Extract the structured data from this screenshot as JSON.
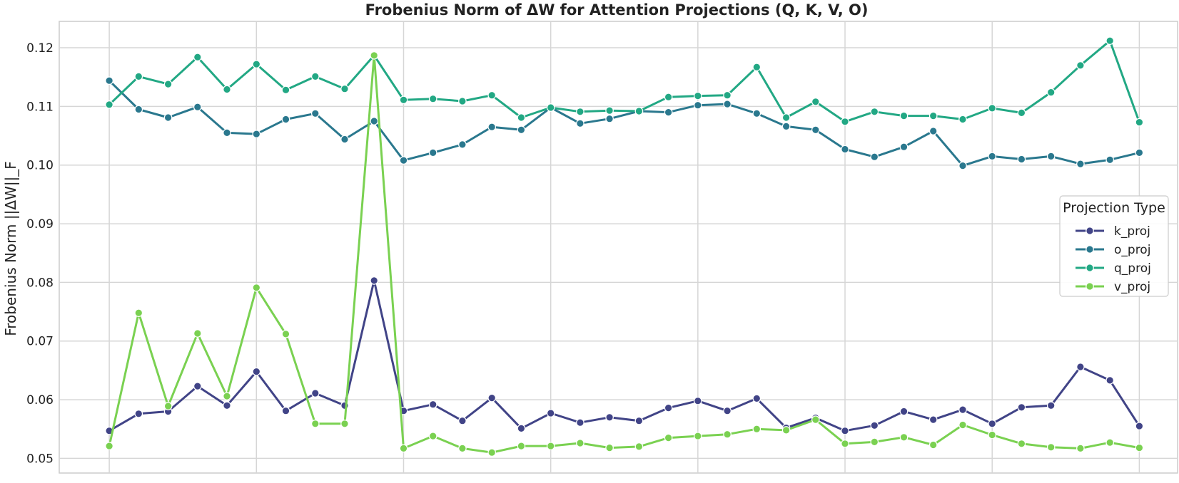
{
  "chart_data": {
    "type": "line",
    "title": "Frobenius Norm of ΔW for Attention Projections (Q, K, V, O)",
    "xlabel": "",
    "ylabel": "Frobenius Norm ||ΔW||_F",
    "ylim": [
      0.0475,
      0.1245
    ],
    "yticks": [
      0.05,
      0.06,
      0.07,
      0.08,
      0.09,
      0.1,
      0.11,
      0.12
    ],
    "ytick_labels": [
      "0.05",
      "0.06",
      "0.07",
      "0.08",
      "0.09",
      "0.10",
      "0.11",
      "0.12"
    ],
    "x": [
      0,
      1,
      2,
      3,
      4,
      5,
      6,
      7,
      8,
      9,
      10,
      11,
      12,
      13,
      14,
      15,
      16,
      17,
      18,
      19,
      20,
      21,
      22,
      23,
      24,
      25,
      26,
      27,
      28,
      29,
      30,
      31,
      32,
      33,
      34,
      35
    ],
    "xlim": [
      -1.7,
      36.3
    ],
    "x_gridlines": [
      0,
      5,
      10,
      15,
      20,
      25,
      30,
      35
    ],
    "grid": true,
    "legend": {
      "title": "Projection Type",
      "position": "right"
    },
    "series": [
      {
        "name": "k_proj",
        "color": "#414487",
        "values": [
          0.0547,
          0.0576,
          0.058,
          0.0623,
          0.059,
          0.0648,
          0.0581,
          0.0611,
          0.059,
          0.0803,
          0.0581,
          0.0592,
          0.0564,
          0.0603,
          0.0551,
          0.0577,
          0.0561,
          0.057,
          0.0564,
          0.0586,
          0.0598,
          0.0581,
          0.0602,
          0.0552,
          0.0569,
          0.0547,
          0.0556,
          0.058,
          0.0566,
          0.0583,
          0.0559,
          0.0587,
          0.059,
          0.0656,
          0.0633,
          0.0555
        ]
      },
      {
        "name": "o_proj",
        "color": "#2a788e",
        "values": [
          0.1144,
          0.1095,
          0.1081,
          0.1099,
          0.1055,
          0.1053,
          0.1078,
          0.1088,
          0.1044,
          0.1075,
          0.1008,
          0.1021,
          0.1035,
          0.1065,
          0.106,
          0.1098,
          0.1071,
          0.1079,
          0.1092,
          0.109,
          0.1102,
          0.1104,
          0.1088,
          0.1066,
          0.106,
          0.1027,
          0.1014,
          0.1031,
          0.1058,
          0.0999,
          0.1015,
          0.101,
          0.1015,
          0.1002,
          0.1009,
          0.1021
        ]
      },
      {
        "name": "q_proj",
        "color": "#22a884",
        "values": [
          0.1103,
          0.1151,
          0.1138,
          0.1184,
          0.1129,
          0.1172,
          0.1128,
          0.1151,
          0.113,
          0.1187,
          0.1111,
          0.1113,
          0.1109,
          0.1119,
          0.1081,
          0.1098,
          0.1091,
          0.1093,
          0.1092,
          0.1116,
          0.1118,
          0.1119,
          0.1167,
          0.1081,
          0.1108,
          0.1074,
          0.1091,
          0.1084,
          0.1084,
          0.1078,
          0.1097,
          0.1089,
          0.1124,
          0.117,
          0.1212,
          0.1073
        ]
      },
      {
        "name": "v_proj",
        "color": "#7ad151",
        "values": [
          0.0521,
          0.0748,
          0.0589,
          0.0713,
          0.0606,
          0.0791,
          0.0712,
          0.0559,
          0.0559,
          0.1187,
          0.0517,
          0.0538,
          0.0517,
          0.051,
          0.0521,
          0.0521,
          0.0526,
          0.0518,
          0.052,
          0.0535,
          0.0538,
          0.0541,
          0.055,
          0.0548,
          0.0566,
          0.0525,
          0.0528,
          0.0536,
          0.0523,
          0.0557,
          0.054,
          0.0525,
          0.0519,
          0.0517,
          0.0527,
          0.0518
        ]
      }
    ]
  }
}
